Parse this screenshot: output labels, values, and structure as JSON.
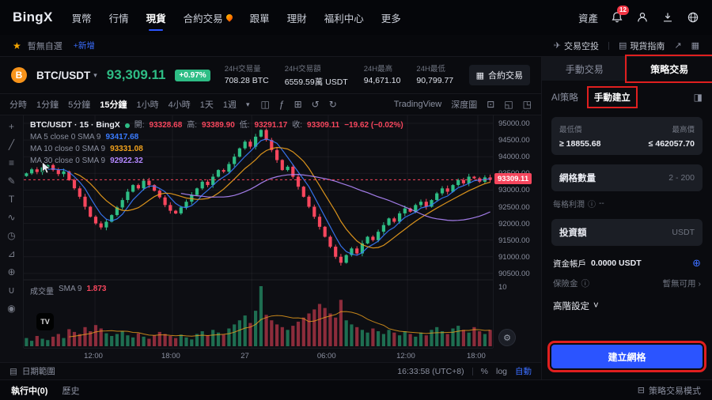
{
  "nav": {
    "logo": "BingX",
    "items": [
      "買幣",
      "行情",
      "現貨",
      "合約交易",
      "跟單",
      "理財",
      "福利中心",
      "更多"
    ],
    "assets": "資產",
    "badge": "12"
  },
  "watchbar": {
    "star": "★",
    "empty": "暫無自選",
    "add": "+新增",
    "airdrop": "交易空投",
    "guide": "現貨指南"
  },
  "ticker": {
    "coin_symbol": "B",
    "pair": "BTC/USDT",
    "price": "93,309.11",
    "change": "+0.97%",
    "stats": [
      {
        "label": "24H交易量",
        "value": "708.28 BTC"
      },
      {
        "label": "24H交易額",
        "value": "6559.59萬 USDT"
      },
      {
        "label": "24H最高",
        "value": "94,671.10"
      },
      {
        "label": "24H最低",
        "value": "90,799.77"
      }
    ],
    "contract_button": "合約交易"
  },
  "toolbar": {
    "intervals": [
      "分時",
      "1分鐘",
      "5分鐘",
      "15分鐘",
      "1小時",
      "4小時",
      "1天",
      "1週"
    ],
    "active_interval": "15分鐘",
    "left_icons": [
      {
        "name": "candlestick-icon",
        "glyph": "◫"
      },
      {
        "name": "indicator-icon",
        "glyph": "ƒ"
      },
      {
        "name": "compare-icon",
        "glyph": "⊞"
      },
      {
        "name": "undo-icon",
        "glyph": "↺"
      },
      {
        "name": "redo-icon",
        "glyph": "↻"
      }
    ],
    "tradingview": "TradingView",
    "depth": "深度圖",
    "right_icons": [
      {
        "name": "camera-icon",
        "glyph": "⊡"
      },
      {
        "name": "expand-icon",
        "glyph": "◱"
      },
      {
        "name": "fullscreen-icon",
        "glyph": "◳"
      }
    ]
  },
  "chart": {
    "title": "BTC/USDT · 15 · BingX",
    "o_label": "開:",
    "o": "93328.68",
    "h_label": "高:",
    "h": "93389.90",
    "l_label": "低:",
    "l": "93291.17",
    "c_label": "收:",
    "c": "93309.11",
    "change": "−19.62 (−0.02%)",
    "ma": [
      {
        "label": "MA 5 close 0 SMA 9",
        "value": "93417.68"
      },
      {
        "label": "MA 10 close 0 SMA 9",
        "value": "93331.08"
      },
      {
        "label": "MA 30 close 0 SMA 9",
        "value": "92922.32"
      }
    ],
    "volume_label": "成交量",
    "volume_sma_label": "SMA 9",
    "volume_value": "1.873",
    "watermark": "TV",
    "draw_tools": [
      {
        "name": "crosshair-icon",
        "glyph": "+"
      },
      {
        "name": "trendline-icon",
        "glyph": "╱"
      },
      {
        "name": "fib-icon",
        "glyph": "≡"
      },
      {
        "name": "brush-icon",
        "glyph": "✎"
      },
      {
        "name": "text-icon",
        "glyph": "T"
      },
      {
        "name": "pattern-icon",
        "glyph": "∿"
      },
      {
        "name": "forecast-icon",
        "glyph": "◷"
      },
      {
        "name": "ruler-icon",
        "glyph": "⊿"
      },
      {
        "name": "zoom-in-icon",
        "glyph": "⊕"
      },
      {
        "name": "magnet-icon",
        "glyph": "∪"
      },
      {
        "name": "eye-icon",
        "glyph": "◉"
      }
    ],
    "footer": {
      "date_range": "日期範圍",
      "clock": "16:33:58 (UTC+8)",
      "percent": "%",
      "log": "log",
      "auto": "自動"
    }
  },
  "chart_data": {
    "type": "candlestick",
    "y_axis": [
      "95000.00",
      "94500.00",
      "94000.00",
      "93500.00",
      "93000.00",
      "92500.00",
      "92000.00",
      "91500.00",
      "91000.00",
      "90500.00"
    ],
    "x_axis": [
      "12:00",
      "18:00",
      "27",
      "06:00",
      "12:00",
      "18:00"
    ],
    "x_axis_pos": [
      0.152,
      0.317,
      0.486,
      0.649,
      0.818,
      0.968
    ],
    "price_top": 95000,
    "price_step": 500,
    "price_line": 93309.11,
    "price_tag": "93309.11",
    "volume_axis": "10",
    "closes": [
      93500,
      93620,
      93540,
      93680,
      93750,
      93600,
      93480,
      93560,
      93300,
      93050,
      92800,
      92500,
      92200,
      92000,
      91880,
      92050,
      92250,
      92480,
      92700,
      92950,
      93150,
      93050,
      93280,
      93150,
      92980,
      92780,
      92550,
      92380,
      92300,
      92480,
      92650,
      92850,
      93050,
      93250,
      93150,
      93400,
      93600,
      93550,
      93780,
      94000,
      94250,
      94450,
      94300,
      94600,
      94800,
      94500,
      94200,
      93900,
      93600,
      93700,
      93400,
      93100,
      92800,
      92500,
      92200,
      91900,
      91600,
      91300,
      91000,
      90820,
      91050,
      91250,
      91100,
      91400,
      91600,
      91500,
      91750,
      91950,
      92150,
      92050,
      92300,
      92450,
      92350,
      92550,
      92650,
      92500,
      92700,
      92900,
      93050,
      92950,
      93150,
      93300,
      93200,
      93400,
      93350,
      93250,
      93380,
      93309
    ],
    "volumes": [
      1.2,
      0.8,
      1.5,
      1.1,
      0.9,
      1.4,
      1.8,
      1.2,
      2.5,
      2.1,
      1.8,
      2.8,
      2.2,
      3.1,
      2.6,
      1.9,
      1.5,
      1.8,
      2.2,
      1.6,
      1.3,
      1.9,
      1.4,
      1.1,
      1.6,
      2.1,
      1.8,
      1.5,
      1.2,
      1.7,
      1.3,
      1.0,
      1.8,
      2.2,
      1.6,
      2.4,
      2.0,
      1.7,
      2.6,
      3.2,
      3.8,
      4.5,
      3.4,
      5.2,
      8.8,
      4.6,
      3.8,
      3.2,
      2.8,
      2.4,
      3.0,
      3.6,
      4.2,
      4.8,
      5.4,
      6.2,
      5.6,
      4.8,
      4.2,
      6.8,
      3.8,
      3.2,
      2.8,
      2.4,
      2.0,
      2.6,
      2.2,
      1.8,
      2.4,
      2.0,
      1.6,
      2.2,
      1.8,
      1.4,
      2.0,
      1.6,
      2.4,
      2.8,
      2.2,
      1.8,
      2.6,
      3.0,
      2.4,
      2.0,
      2.8,
      2.2,
      1.8,
      2.4
    ],
    "colors": {
      "up": "#2ebd85",
      "down": "#f6465d",
      "ma5": "#3a7bff",
      "ma10": "#f0a11d",
      "ma30": "#b388ff",
      "grid": "rgba(255,255,255,0.05)"
    }
  },
  "panel": {
    "tabs": [
      "手動交易",
      "策略交易"
    ],
    "subtabs": [
      "AI策略",
      "手動建立"
    ],
    "min_label": "最低價",
    "min_value": "≥ 18855.68",
    "max_label": "最高價",
    "max_value": "≤ 462057.70",
    "grid_label": "網格數量",
    "grid_range": "2 - 200",
    "profit_label": "每格利潤",
    "profit_value": "--",
    "invest_label": "投資額",
    "invest_unit": "USDT",
    "fund_label": "資金帳戶",
    "fund_value": "0.0000 USDT",
    "insurance_label": "保險金",
    "insurance_value": "暫無可用",
    "advanced_label": "高階設定",
    "create_label": "建立網格"
  },
  "bottombar": {
    "tabs": [
      "執行中(0)",
      "歷史"
    ],
    "mode": "策略交易模式"
  },
  "icons": {
    "info": "ⓘ",
    "plus_circle": "⊕",
    "chevron_right": "›",
    "chevron_down": "˅",
    "caret_down": "▾",
    "mode": "⊟",
    "panel_toggle": "◨",
    "gear": "⚙",
    "calendar": "▤",
    "airdrop": "✈",
    "guide": "▤",
    "share": "↗",
    "layout": "▦",
    "contract": "▦"
  }
}
